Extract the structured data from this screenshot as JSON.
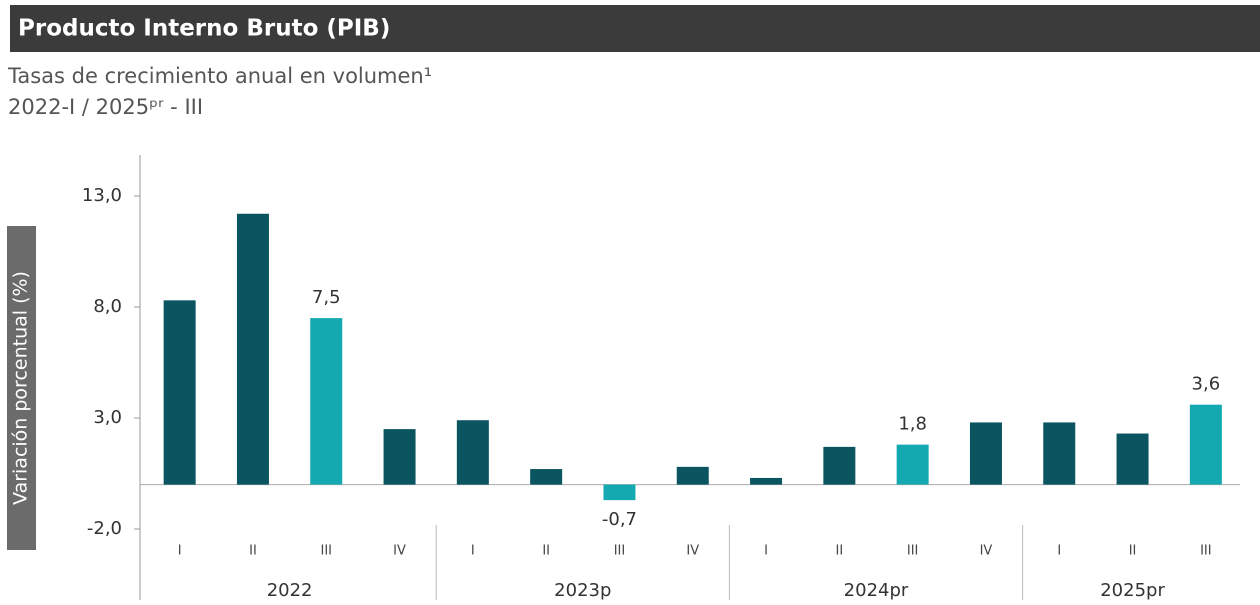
{
  "chart_data": {
    "type": "bar",
    "title": "Producto Interno Bruto (PIB)",
    "subtitle": "Tasas de crecimiento anual en volumen¹",
    "period": "2022-I / 2025ᵖʳ - III",
    "y_label": "Variación porcentual (%)",
    "ylim": [
      -2,
      15
    ],
    "yticks": [
      {
        "value": -2,
        "label": "-2,0"
      },
      {
        "value": 3,
        "label": "3,0"
      },
      {
        "value": 8,
        "label": "8,0"
      },
      {
        "value": 13,
        "label": "13,0"
      }
    ],
    "groups": [
      {
        "label": "2022",
        "categories": [
          "I",
          "II",
          "III",
          "IV"
        ],
        "values": [
          8.3,
          12.2,
          7.5,
          2.5
        ],
        "value_labels": [
          null,
          null,
          "7,5",
          null
        ],
        "colors": [
          "#0a5560",
          "#0a5560",
          "#14a9b1",
          "#0a5560"
        ]
      },
      {
        "label": "2023p",
        "categories": [
          "I",
          "II",
          "III",
          "IV"
        ],
        "values": [
          2.9,
          0.7,
          -0.7,
          0.8
        ],
        "value_labels": [
          null,
          null,
          "-0,7",
          null
        ],
        "colors": [
          "#0a5560",
          "#0a5560",
          "#14a9b1",
          "#0a5560"
        ]
      },
      {
        "label": "2024pr",
        "categories": [
          "I",
          "II",
          "III",
          "IV"
        ],
        "values": [
          0.3,
          1.7,
          1.8,
          2.8
        ],
        "value_labels": [
          null,
          null,
          "1,8",
          null
        ],
        "colors": [
          "#0a5560",
          "#0a5560",
          "#14a9b1",
          "#0a5560"
        ]
      },
      {
        "label": "2025pr",
        "categories": [
          "I",
          "II",
          "III"
        ],
        "values": [
          2.8,
          2.3,
          3.6
        ],
        "value_labels": [
          null,
          null,
          "3,6"
        ],
        "colors": [
          "#0a5560",
          "#0a5560",
          "#14a9b1"
        ]
      }
    ]
  }
}
